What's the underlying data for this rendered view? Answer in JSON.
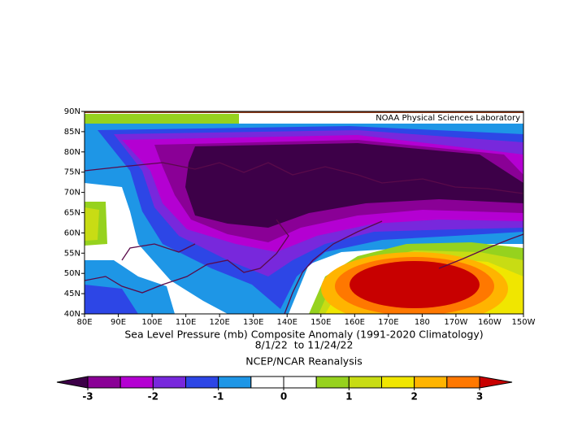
{
  "map": {
    "credit": "NOAA Physical Sciences Laboratory",
    "lat_labels": [
      "40N",
      "45N",
      "50N",
      "55N",
      "60N",
      "65N",
      "70N",
      "75N",
      "80N",
      "85N",
      "90N"
    ],
    "lon_labels": [
      "80E",
      "90E",
      "100E",
      "110E",
      "120E",
      "130E",
      "140E",
      "150E",
      "160E",
      "170E",
      "180",
      "170W",
      "160W",
      "150W"
    ],
    "title": "Sea Level Pressure (mb) Composite Anomaly (1991-2020 Climatology)",
    "dates": "8/1/22  to 11/24/22",
    "source": "NCEP/NCAR Reanalysis"
  },
  "colorbar": {
    "ticks": [
      -3,
      -2,
      -1,
      0,
      1,
      2,
      3
    ],
    "colors": [
      "#3d0048",
      "#8a0096",
      "#b400d2",
      "#7828dc",
      "#2d46e6",
      "#1e96e6",
      "#ffffff",
      "#ffffff",
      "#96d21e",
      "#c8dc14",
      "#f0e600",
      "#ffb400",
      "#ff7800",
      "#c80000"
    ]
  }
}
